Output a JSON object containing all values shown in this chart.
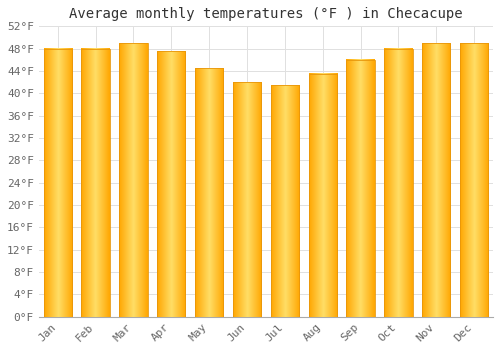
{
  "title": "Average monthly temperatures (°F ) in Checacupe",
  "months": [
    "Jan",
    "Feb",
    "Mar",
    "Apr",
    "May",
    "Jun",
    "Jul",
    "Aug",
    "Sep",
    "Oct",
    "Nov",
    "Dec"
  ],
  "values": [
    48.0,
    48.0,
    49.0,
    47.5,
    44.5,
    42.0,
    41.5,
    43.5,
    46.0,
    48.0,
    49.0,
    49.0
  ],
  "bar_color_center": "#FFD966",
  "bar_color_edge": "#FFA500",
  "ylim": [
    0,
    52
  ],
  "yticks": [
    0,
    4,
    8,
    12,
    16,
    20,
    24,
    28,
    32,
    36,
    40,
    44,
    48,
    52
  ],
  "ytick_labels": [
    "0°F",
    "4°F",
    "8°F",
    "12°F",
    "16°F",
    "20°F",
    "24°F",
    "28°F",
    "32°F",
    "36°F",
    "40°F",
    "44°F",
    "48°F",
    "52°F"
  ],
  "background_color": "#FFFFFF",
  "grid_color": "#E0E0E0",
  "title_fontsize": 10,
  "tick_fontsize": 8,
  "font_family": "monospace",
  "bar_width": 0.75
}
